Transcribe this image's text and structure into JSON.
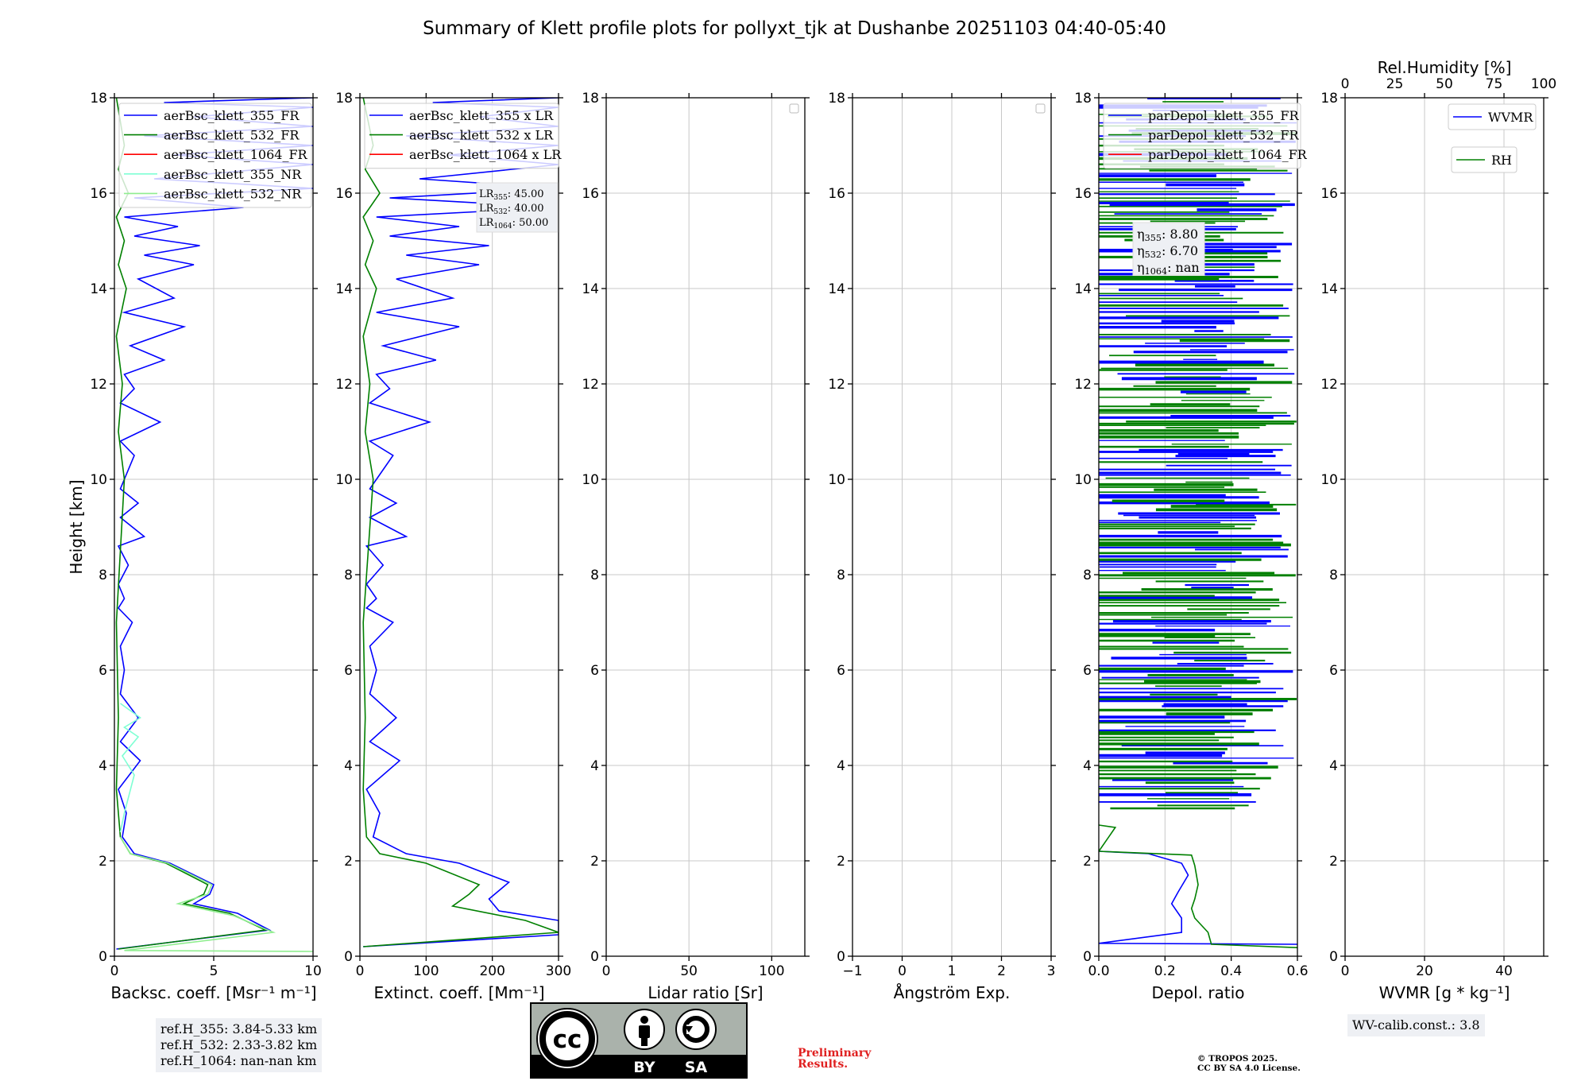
{
  "title": "Summary of Klett profile plots for pollyxt_tjk at Dushanbe 20251103 04:40-05:40",
  "colors": {
    "blue": "#0000ff",
    "green": "#008000",
    "red": "#ff0000",
    "cyan": "#7fffd4",
    "lightgreen": "#90ee90",
    "grid": "#c8c8c8"
  },
  "panels": [
    {
      "id": "backscatter",
      "xlabel": "Backsc. coeff. [Msr⁻¹ m⁻¹]",
      "ylabel": "Height [km]",
      "xlim": [
        0,
        10
      ],
      "xticks": [
        "0",
        "5",
        "10"
      ],
      "legend": [
        {
          "label": "aerBsc_klett_355_FR",
          "color": "#0000ff"
        },
        {
          "label": "aerBsc_klett_532_FR",
          "color": "#008000"
        },
        {
          "label": "aerBsc_klett_1064_FR",
          "color": "#ff0000"
        },
        {
          "label": "aerBsc_klett_355_NR",
          "color": "#7fffd4"
        },
        {
          "label": "aerBsc_klett_532_NR",
          "color": "#90ee90"
        }
      ]
    },
    {
      "id": "extinction",
      "xlabel": "Extinct. coeff. [Mm⁻¹]",
      "xlim": [
        0,
        300
      ],
      "xticks": [
        "0",
        "100",
        "200",
        "300"
      ],
      "legend": [
        {
          "label": "aerBsc_klett_355 x LR",
          "color": "#0000ff"
        },
        {
          "label": "aerBsc_klett_532 x LR",
          "color": "#008000"
        },
        {
          "label": "aerBsc_klett_1064 x LR",
          "color": "#ff0000"
        }
      ],
      "lr_box": [
        {
          "sub": "355",
          "val": ": 45.00"
        },
        {
          "sub": "532",
          "val": ": 40.00"
        },
        {
          "sub": "1064",
          "val": ": 50.00"
        }
      ]
    },
    {
      "id": "lidar_ratio",
      "xlabel": "Lidar ratio [Sr]",
      "xlim": [
        0,
        120
      ],
      "xticks": [
        "0",
        "50",
        "100"
      ]
    },
    {
      "id": "angstrom",
      "xlabel": "Ångström Exp.",
      "xlim": [
        -1,
        3
      ],
      "xticks": [
        "−1",
        "0",
        "1",
        "2",
        "3"
      ]
    },
    {
      "id": "depol",
      "xlabel": "Depol. ratio",
      "xlim": [
        0,
        0.6
      ],
      "xticks": [
        "0.0",
        "0.2",
        "0.4",
        "0.6"
      ],
      "legend": [
        {
          "label": "parDepol_klett_355_FR",
          "color": "#0000ff"
        },
        {
          "label": "parDepol_klett_532_FR",
          "color": "#008000"
        },
        {
          "label": "parDepol_klett_1064_FR",
          "color": "#ff0000"
        }
      ],
      "eta_box": [
        {
          "sub": "355",
          "val": ": 8.80"
        },
        {
          "sub": "532",
          "val": ": 6.70"
        },
        {
          "sub": "1064",
          "val": ": nan"
        }
      ]
    },
    {
      "id": "wvmr",
      "xlabel": "WVMR [g * kg⁻¹]",
      "xlim": [
        0,
        50
      ],
      "xticks": [
        "0",
        "20",
        "40"
      ],
      "top_label": "Rel.Humidity [%]",
      "top_ticks": [
        "0",
        "25",
        "50",
        "75",
        "100"
      ],
      "legend": [
        {
          "label": "WVMR",
          "color": "#0000ff"
        },
        {
          "label": "RH",
          "color": "#008000"
        }
      ]
    }
  ],
  "yaxis": {
    "ylim": [
      0,
      18
    ],
    "ticks": [
      "0",
      "2",
      "4",
      "6",
      "8",
      "10",
      "12",
      "14",
      "16",
      "18"
    ]
  },
  "chart_data": {
    "type": "line",
    "title": "Summary of Klett profile plots for pollyxt_tjk at Dushanbe 20251103 04:40-05:40",
    "ylabel": "Height [km]",
    "ylim": [
      0,
      18
    ],
    "backscatter": {
      "xlabel": "Backsc. coeff. [Msr^-1 m^-1]",
      "xlim": [
        0,
        10
      ],
      "series": [
        {
          "name": "aerBsc_klett_355_FR",
          "color": "#0000ff",
          "x": [
            0.1,
            7.8,
            6.2,
            4.0,
            4.8,
            5.0,
            2.8,
            1.0,
            0.4,
            0.6,
            0.2,
            1.3,
            0.3,
            1.2,
            0.3,
            0.5,
            0.3,
            0.9,
            0.2,
            0.5,
            0.2,
            0.7,
            0.2,
            1.5,
            0.3,
            1.2,
            0.3,
            1.0,
            0.3,
            2.3,
            0.3,
            1.0,
            0.5,
            2.5,
            0.8,
            3.5,
            0.5,
            3.0,
            1.2,
            4.0,
            1.5,
            4.3,
            1.0,
            3.2,
            0.5,
            6.5,
            1.0,
            10.0,
            2.0,
            10.0,
            3.0,
            10.0,
            1.5,
            10.0,
            4.0,
            10.0,
            2.5,
            10.0
          ],
          "y": [
            0.15,
            0.55,
            0.9,
            1.1,
            1.3,
            1.5,
            1.95,
            2.15,
            2.5,
            3.0,
            3.5,
            4.1,
            4.5,
            5.0,
            5.5,
            6.0,
            6.5,
            7.0,
            7.3,
            7.5,
            7.8,
            8.2,
            8.6,
            8.8,
            9.2,
            9.5,
            9.8,
            10.5,
            10.8,
            11.2,
            11.6,
            11.9,
            12.2,
            12.5,
            12.8,
            13.2,
            13.5,
            13.8,
            14.2,
            14.5,
            14.7,
            14.9,
            15.1,
            15.3,
            15.5,
            15.7,
            15.9,
            16.1,
            16.3,
            16.6,
            16.8,
            17.0,
            17.2,
            17.4,
            17.6,
            17.8,
            17.9,
            18.0
          ]
        },
        {
          "name": "aerBsc_klett_532_FR",
          "color": "#008000",
          "x": [
            0.2,
            7.6,
            5.8,
            3.5,
            4.5,
            4.7,
            2.6,
            0.8,
            0.3,
            0.1,
            0.2,
            0.1,
            0.5,
            0.2,
            0.4,
            0.1,
            0.6,
            0.2,
            0.5,
            0.1,
            0.7,
            0.2,
            0.5,
            0.1
          ],
          "y": [
            0.15,
            0.55,
            0.9,
            1.1,
            1.3,
            1.5,
            1.95,
            2.15,
            2.5,
            3.5,
            5.0,
            7.0,
            10.0,
            11.0,
            12.0,
            13.0,
            14.0,
            14.5,
            15.0,
            15.5,
            16.0,
            16.5,
            17.0,
            18.0
          ]
        },
        {
          "name": "aerBsc_klett_1064_FR",
          "color": "#ff0000",
          "x": [],
          "y": []
        },
        {
          "name": "aerBsc_klett_355_NR",
          "color": "#7fffd4",
          "x": [
            0.3,
            0.5,
            1.0,
            0.4,
            1.2,
            0.5,
            1.3,
            0.3
          ],
          "y": [
            2.6,
            3.0,
            3.8,
            4.2,
            4.6,
            4.8,
            5.0,
            5.3
          ]
        },
        {
          "name": "aerBsc_klett_532_NR",
          "color": "#90ee90",
          "x": [
            10.0,
            0.5,
            8.0,
            6.0,
            3.2,
            4.7,
            4.9,
            2.7,
            0.8,
            0.3
          ],
          "y": [
            0.1,
            0.12,
            0.5,
            0.85,
            1.1,
            1.3,
            1.5,
            1.95,
            2.15,
            2.5
          ]
        }
      ]
    },
    "extinction": {
      "xlabel": "Extinct. coeff. [Mm^-1]",
      "xlim": [
        0,
        300
      ],
      "series": [
        {
          "name": "aerBsc_klett_355 x LR",
          "color": "#0000ff",
          "x": [
            5,
            300,
            300,
            210,
            195,
            225,
            150,
            70,
            20,
            30,
            10,
            60,
            15,
            55,
            15,
            25,
            15,
            50,
            10,
            25,
            10,
            35,
            10,
            70,
            15,
            55,
            15,
            50,
            15,
            105,
            15,
            45,
            25,
            115,
            35,
            150,
            25,
            140,
            55,
            180,
            70,
            195,
            45,
            150,
            25,
            300,
            45,
            300,
            90,
            300,
            135,
            300,
            70,
            300,
            180,
            300,
            110,
            300
          ],
          "y": [
            0.2,
            0.45,
            0.75,
            0.95,
            1.2,
            1.55,
            1.95,
            2.15,
            2.5,
            3.0,
            3.5,
            4.1,
            4.5,
            5.0,
            5.5,
            6.0,
            6.5,
            7.0,
            7.3,
            7.5,
            7.8,
            8.2,
            8.6,
            8.8,
            9.2,
            9.5,
            9.8,
            10.5,
            10.8,
            11.2,
            11.6,
            11.9,
            12.2,
            12.5,
            12.8,
            13.2,
            13.5,
            13.8,
            14.2,
            14.5,
            14.7,
            14.9,
            15.1,
            15.3,
            15.5,
            15.7,
            15.9,
            16.1,
            16.3,
            16.6,
            16.8,
            17.0,
            17.2,
            17.4,
            17.6,
            17.8,
            17.9,
            18.0
          ]
        },
        {
          "name": "aerBsc_klett_532 x LR",
          "color": "#008000",
          "x": [
            5,
            300,
            250,
            140,
            165,
            180,
            100,
            30,
            10,
            5,
            8,
            5,
            20,
            8,
            15,
            5,
            25,
            8,
            20,
            5,
            30,
            8,
            20,
            5
          ],
          "y": [
            0.2,
            0.5,
            0.75,
            1.05,
            1.3,
            1.5,
            1.95,
            2.15,
            2.5,
            3.5,
            5.0,
            7.0,
            10.0,
            11.0,
            12.0,
            13.0,
            14.0,
            14.5,
            15.0,
            15.5,
            16.0,
            16.5,
            17.0,
            18.0
          ]
        },
        {
          "name": "aerBsc_klett_1064 x LR",
          "color": "#ff0000",
          "x": [],
          "y": []
        }
      ]
    },
    "lidar_ratio": {
      "xlabel": "Lidar ratio [Sr]",
      "xlim": [
        0,
        120
      ],
      "series": []
    },
    "angstrom": {
      "xlabel": "Ångström Exp.",
      "xlim": [
        -1,
        3
      ],
      "series": []
    },
    "depol": {
      "xlabel": "Depol. ratio",
      "xlim": [
        0,
        0.6
      ],
      "series": [
        {
          "name": "parDepol_klett_355_FR",
          "color": "#0000ff",
          "x": [
            0.6,
            0.0,
            0.25,
            0.25,
            0.22,
            0.24,
            0.27,
            0.25,
            0.15,
            0.0
          ],
          "y": [
            0.25,
            0.27,
            0.5,
            0.8,
            1.1,
            1.35,
            1.7,
            1.95,
            2.15,
            2.2
          ]
        },
        {
          "name": "parDepol_klett_532_FR",
          "color": "#008000",
          "x": [
            0.6,
            0.34,
            0.33,
            0.29,
            0.28,
            0.29,
            0.3,
            0.29,
            0.28,
            0.0,
            0.05,
            0.0
          ],
          "y": [
            0.18,
            0.25,
            0.5,
            0.8,
            1.0,
            1.2,
            1.5,
            1.9,
            2.12,
            2.2,
            2.7,
            2.75
          ]
        },
        {
          "name": "parDepol_klett_1064_FR",
          "color": "#ff0000",
          "x": [],
          "y": []
        }
      ],
      "noise_region_km": [
        3.1,
        18.0
      ]
    },
    "wvmr": {
      "xlabel": "WVMR [g*kg^-1]",
      "xlim": [
        0,
        50
      ],
      "rh_xlim": [
        0,
        100
      ],
      "series": []
    }
  },
  "ref_heights": [
    "ref.H_355: 3.84-5.33 km",
    "ref.H_532: 2.33-3.82 km",
    "ref.H_1064: nan-nan km"
  ],
  "wv_calib": "WV-calib.const.: 3.8",
  "preliminary": [
    "Preliminary",
    "Results."
  ],
  "copyright": [
    "© TROPOS 2025.",
    "CC BY SA 4.0 License."
  ],
  "cc_logo": {
    "main": "cc",
    "by": "BY",
    "sa": "SA"
  }
}
